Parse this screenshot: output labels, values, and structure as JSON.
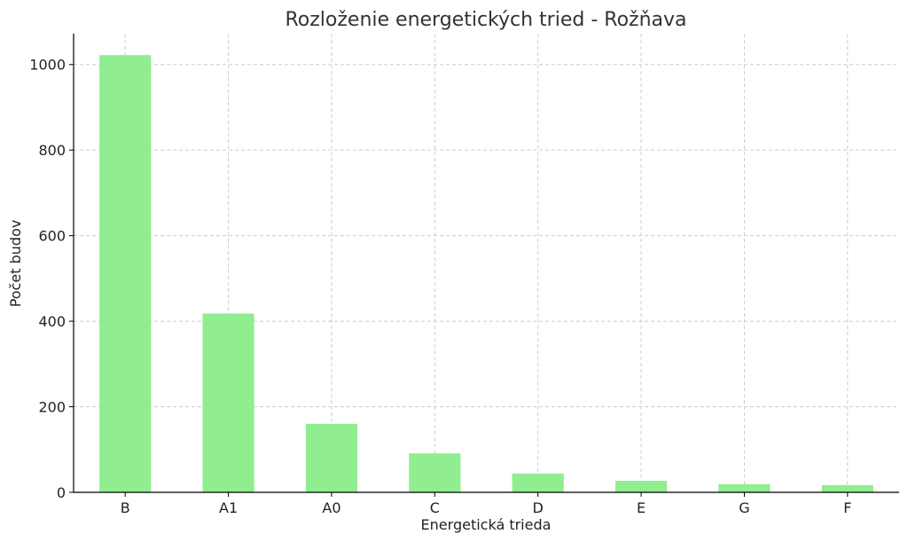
{
  "chart_data": {
    "type": "bar",
    "title": "Rozloženie energetických tried - Rožňava",
    "xlabel": "Energetická trieda",
    "ylabel": "Počet budov",
    "categories": [
      "B",
      "A1",
      "A0",
      "C",
      "D",
      "E",
      "G",
      "F"
    ],
    "values": [
      1022,
      418,
      160,
      91,
      44,
      27,
      19,
      17
    ],
    "ylim": [
      0,
      1072
    ],
    "yticks": [
      0,
      200,
      400,
      600,
      800,
      1000
    ],
    "grid": true,
    "bar_color": "#90ee90"
  }
}
